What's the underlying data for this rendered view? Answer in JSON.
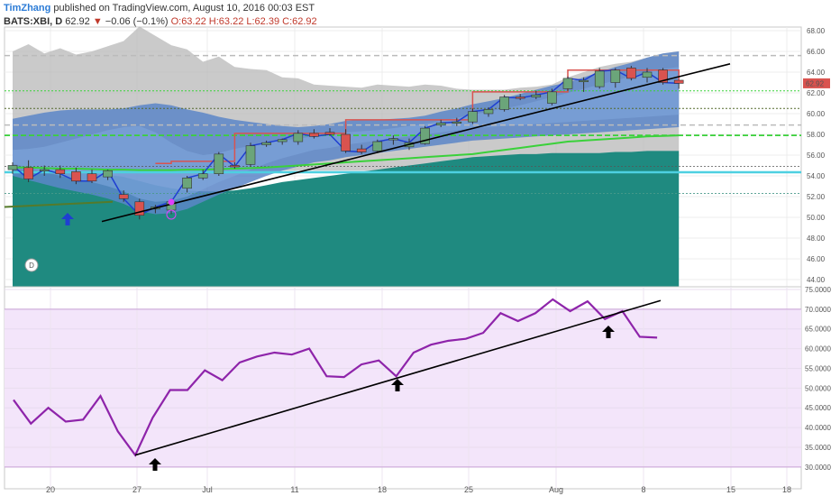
{
  "header": {
    "author": "TimZhang",
    "published_text": "published on TradingView.com, August 10, 2016 00:03 EST",
    "symbol": "BATS:XBI, D",
    "last": "62.92",
    "change_arrow": "▼",
    "change": "−0.06 (−0.1%)",
    "o": "O:63.22",
    "h": "H:63.22",
    "l": "L:62.39",
    "c": "C:62.92"
  },
  "interval_badge": "D",
  "colors": {
    "up": "#6ba57a",
    "down": "#d9534f",
    "rsi": "#8e24aa",
    "band_fill": "#f3e5fa",
    "teal": "#1f8a80",
    "blue_cloud": "#5c86c8",
    "gray_cloud": "#b8b8b8",
    "trend": "#000000",
    "price_badge": "#d9534f"
  },
  "chart_data": [
    {
      "type": "candlestick",
      "title": "",
      "ylim": [
        44,
        68
      ],
      "y_ticks": [
        "68.00",
        "66.00",
        "64.00",
        "62.00",
        "60.00",
        "58.00",
        "56.00",
        "54.00",
        "52.00",
        "50.00",
        "48.00",
        "46.00",
        "44.00"
      ],
      "last_price_label": "62.92",
      "x_ticks": [
        "20",
        "27",
        "Jul",
        "11",
        "18",
        "25",
        "Aug",
        "8",
        "15",
        "18"
      ],
      "candles": [
        {
          "o": 54.6,
          "h": 55.3,
          "l": 54.2,
          "c": 55.0
        },
        {
          "o": 54.8,
          "h": 55.5,
          "l": 53.4,
          "c": 53.7
        },
        {
          "o": 54.5,
          "h": 55.0,
          "l": 54.0,
          "c": 54.6
        },
        {
          "o": 54.6,
          "h": 55.0,
          "l": 53.8,
          "c": 54.2
        },
        {
          "o": 54.4,
          "h": 54.8,
          "l": 53.2,
          "c": 53.5
        },
        {
          "o": 54.2,
          "h": 54.6,
          "l": 53.3,
          "c": 53.5
        },
        {
          "o": 53.9,
          "h": 54.6,
          "l": 53.6,
          "c": 54.5
        },
        {
          "o": 52.2,
          "h": 52.6,
          "l": 51.5,
          "c": 51.8
        },
        {
          "o": 51.5,
          "h": 51.8,
          "l": 49.8,
          "c": 50.2
        },
        {
          "o": 50.8,
          "h": 51.2,
          "l": 50.4,
          "c": 51.0
        },
        {
          "o": 50.7,
          "h": 51.8,
          "l": 50.3,
          "c": 51.5
        },
        {
          "o": 52.8,
          "h": 54.0,
          "l": 52.4,
          "c": 53.8
        },
        {
          "o": 53.8,
          "h": 54.6,
          "l": 53.6,
          "c": 54.2
        },
        {
          "o": 54.2,
          "h": 56.3,
          "l": 54.0,
          "c": 56.1
        },
        {
          "o": 55.0,
          "h": 55.3,
          "l": 54.7,
          "c": 54.9
        },
        {
          "o": 55.1,
          "h": 57.2,
          "l": 54.9,
          "c": 56.9
        },
        {
          "o": 57.0,
          "h": 57.4,
          "l": 56.8,
          "c": 57.2
        },
        {
          "o": 57.3,
          "h": 57.6,
          "l": 57.0,
          "c": 57.5
        },
        {
          "o": 57.3,
          "h": 58.4,
          "l": 57.0,
          "c": 58.1
        },
        {
          "o": 58.1,
          "h": 58.5,
          "l": 57.6,
          "c": 57.8
        },
        {
          "o": 58.2,
          "h": 58.6,
          "l": 57.9,
          "c": 58.0
        },
        {
          "o": 58.0,
          "h": 58.5,
          "l": 56.2,
          "c": 56.4
        },
        {
          "o": 56.6,
          "h": 57.0,
          "l": 56.1,
          "c": 56.3
        },
        {
          "o": 56.4,
          "h": 57.5,
          "l": 56.2,
          "c": 57.3
        },
        {
          "o": 57.5,
          "h": 57.9,
          "l": 57.0,
          "c": 57.6
        },
        {
          "o": 56.8,
          "h": 57.6,
          "l": 56.5,
          "c": 57.2
        },
        {
          "o": 57.1,
          "h": 58.8,
          "l": 57.0,
          "c": 58.6
        },
        {
          "o": 58.9,
          "h": 59.4,
          "l": 58.7,
          "c": 59.1
        },
        {
          "o": 59.1,
          "h": 59.6,
          "l": 58.8,
          "c": 59.2
        },
        {
          "o": 59.2,
          "h": 60.5,
          "l": 59.0,
          "c": 60.2
        },
        {
          "o": 60.0,
          "h": 60.6,
          "l": 59.7,
          "c": 60.4
        },
        {
          "o": 60.4,
          "h": 61.8,
          "l": 60.2,
          "c": 61.6
        },
        {
          "o": 61.6,
          "h": 61.9,
          "l": 61.3,
          "c": 61.5
        },
        {
          "o": 61.6,
          "h": 62.2,
          "l": 61.4,
          "c": 61.8
        },
        {
          "o": 61.0,
          "h": 62.4,
          "l": 60.8,
          "c": 62.1
        },
        {
          "o": 62.4,
          "h": 63.6,
          "l": 62.2,
          "c": 63.4
        },
        {
          "o": 63.2,
          "h": 63.5,
          "l": 62.1,
          "c": 63.2
        },
        {
          "o": 62.6,
          "h": 64.4,
          "l": 62.4,
          "c": 64.1
        },
        {
          "o": 63.0,
          "h": 64.4,
          "l": 62.5,
          "c": 64.2
        },
        {
          "o": 64.4,
          "h": 64.6,
          "l": 63.2,
          "c": 63.4
        },
        {
          "o": 63.5,
          "h": 64.4,
          "l": 63.0,
          "c": 64.0
        },
        {
          "o": 64.2,
          "h": 64.4,
          "l": 62.8,
          "c": 63.0
        },
        {
          "o": 63.22,
          "h": 63.22,
          "l": 62.39,
          "c": 62.92
        }
      ]
    },
    {
      "type": "line",
      "title": "",
      "ylim": [
        29.5,
        75
      ],
      "y_ticks": [
        "75.0000",
        "70.0000",
        "65.0000",
        "60.0000",
        "55.0000",
        "50.0000",
        "45.0000",
        "40.0000",
        "35.0000",
        "30.0000"
      ],
      "band": [
        30,
        70
      ],
      "series": [
        {
          "values": [
            47.0,
            41.0,
            45.0,
            41.5,
            42.0,
            48.0,
            39.0,
            33.0,
            42.5,
            49.5,
            49.5,
            54.5,
            52.0,
            56.5,
            58.0,
            59.0,
            58.5,
            60.0,
            53.0,
            52.8,
            56.0,
            57.0,
            53.0,
            59.0,
            61.0,
            62.0,
            62.5,
            64.0,
            69.0,
            67.0,
            69.0,
            72.5,
            69.5,
            72.0,
            67.5,
            69.5,
            63.0,
            62.8
          ]
        }
      ]
    }
  ]
}
